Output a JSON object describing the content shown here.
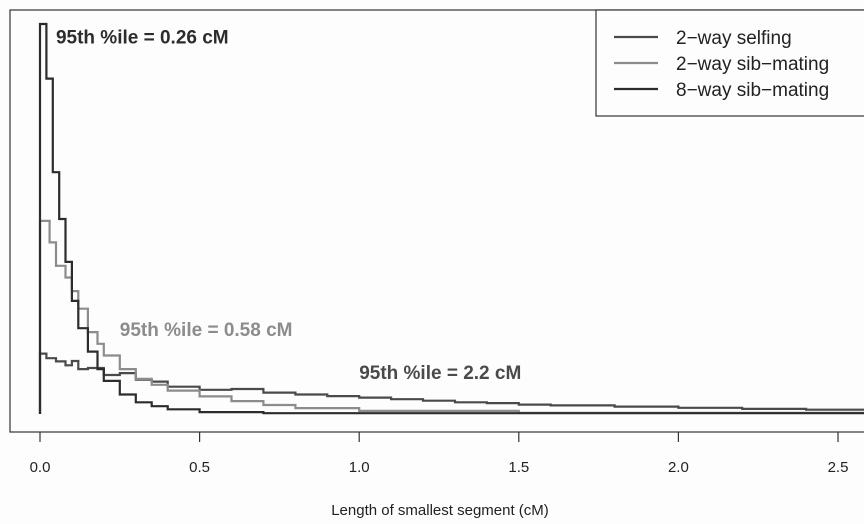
{
  "chart_data": {
    "type": "line",
    "xlabel": "Length of smallest segment (cM)",
    "xlim": [
      -0.1,
      2.6
    ],
    "x_ticks": [
      "0.0",
      "0.5",
      "1.0",
      "1.5",
      "2.0",
      "2.5"
    ],
    "x_tick_values": [
      0.0,
      0.5,
      1.0,
      1.5,
      2.0,
      2.5
    ],
    "ylim": [
      0,
      100
    ],
    "y_axis_labels_shown": false,
    "legend_position": "top-right",
    "series": [
      {
        "name": "2−way selfing",
        "color": "#4a4a4a",
        "style": "step",
        "points": [
          [
            0.0,
            15.5
          ],
          [
            0.02,
            14.3
          ],
          [
            0.05,
            13.5
          ],
          [
            0.08,
            12.5
          ],
          [
            0.1,
            13.6
          ],
          [
            0.12,
            11.5
          ],
          [
            0.15,
            11.8
          ],
          [
            0.2,
            10.0
          ],
          [
            0.25,
            10.5
          ],
          [
            0.3,
            8.8
          ],
          [
            0.35,
            8.3
          ],
          [
            0.4,
            7.0
          ],
          [
            0.5,
            6.2
          ],
          [
            0.6,
            6.4
          ],
          [
            0.7,
            5.5
          ],
          [
            0.8,
            5.0
          ],
          [
            0.9,
            4.6
          ],
          [
            1.0,
            4.2
          ],
          [
            1.1,
            3.8
          ],
          [
            1.2,
            3.4
          ],
          [
            1.3,
            3.0
          ],
          [
            1.4,
            2.8
          ],
          [
            1.5,
            2.4
          ],
          [
            1.6,
            2.2
          ],
          [
            1.8,
            1.9
          ],
          [
            2.0,
            1.6
          ],
          [
            2.2,
            1.3
          ],
          [
            2.4,
            1.1
          ],
          [
            2.6,
            1.1
          ]
        ]
      },
      {
        "name": "2−way sib−mating",
        "color": "#8c8c8c",
        "style": "step",
        "points": [
          [
            0.0,
            49.5
          ],
          [
            0.03,
            44.0
          ],
          [
            0.05,
            38.0
          ],
          [
            0.08,
            35.0
          ],
          [
            0.1,
            31.5
          ],
          [
            0.12,
            27.0
          ],
          [
            0.15,
            21.0
          ],
          [
            0.18,
            18.0
          ],
          [
            0.2,
            15.0
          ],
          [
            0.25,
            11.5
          ],
          [
            0.3,
            9.0
          ],
          [
            0.35,
            7.5
          ],
          [
            0.4,
            6.0
          ],
          [
            0.5,
            4.5
          ],
          [
            0.6,
            3.3
          ],
          [
            0.7,
            2.3
          ],
          [
            0.8,
            1.5
          ],
          [
            1.0,
            0.8
          ],
          [
            1.5,
            0.3
          ],
          [
            2.6,
            0.2
          ]
        ]
      },
      {
        "name": "8−way sib−mating",
        "color": "#2c2c2c",
        "style": "step",
        "points": [
          [
            0.0,
            100.0
          ],
          [
            0.02,
            86.0
          ],
          [
            0.04,
            62.0
          ],
          [
            0.06,
            50.0
          ],
          [
            0.08,
            39.0
          ],
          [
            0.1,
            29.0
          ],
          [
            0.12,
            22.0
          ],
          [
            0.15,
            16.0
          ],
          [
            0.18,
            11.5
          ],
          [
            0.2,
            8.5
          ],
          [
            0.25,
            5.0
          ],
          [
            0.3,
            3.0
          ],
          [
            0.35,
            2.0
          ],
          [
            0.4,
            1.2
          ],
          [
            0.5,
            0.5
          ],
          [
            0.7,
            0.2
          ],
          [
            2.6,
            0.1
          ]
        ]
      }
    ],
    "annotations": [
      {
        "text": "95th %ile = 0.26 cM",
        "series": 2,
        "x": 0.05,
        "y": 95
      },
      {
        "text": "95th %ile = 0.58 cM",
        "series": 1,
        "x": 0.25,
        "y": 20
      },
      {
        "text": "95th %ile = 2.2 cM",
        "series": 0,
        "x": 1.0,
        "y": 9
      }
    ]
  }
}
